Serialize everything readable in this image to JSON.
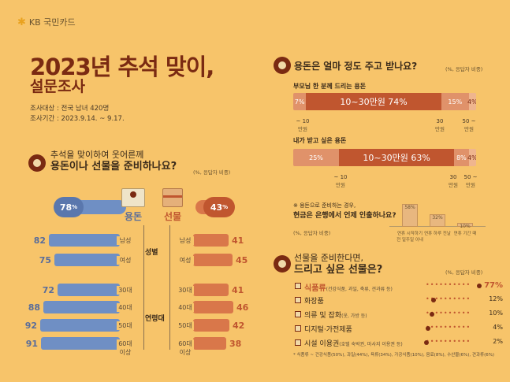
{
  "brand": {
    "logo": "KB 국민카드"
  },
  "header": {
    "title_line1": "2023년 추석 맞이,",
    "title_line2": "설문조사",
    "target": "조사대상 : 전국 남녀 420명",
    "period": "조사기간 : 2023.9.14. ~ 9.17."
  },
  "left": {
    "question_line1": "추석을 맞이하여 웃어른께",
    "question_line2": "용돈이나 선물을 준비하나요?",
    "unit": "(%, 응답자 비중)",
    "yongdon_label": "용돈",
    "yongdon_value": "78",
    "gift_label": "선물",
    "gift_value": "43",
    "gender_label": "성별",
    "age_label": "연령대",
    "rows": [
      {
        "cat": "남성",
        "left": "82",
        "right": "41",
        "lnum": 82,
        "rnum": 41
      },
      {
        "cat": "여성",
        "left": "75",
        "right": "45",
        "lnum": 75,
        "rnum": 45
      },
      {
        "cat": "30대",
        "left": "72",
        "right": "41",
        "lnum": 72,
        "rnum": 41
      },
      {
        "cat": "40대",
        "left": "88",
        "right": "46",
        "lnum": 88,
        "rnum": 46
      },
      {
        "cat": "50대",
        "left": "92",
        "right": "42",
        "lnum": 92,
        "rnum": 42
      },
      {
        "cat": "60대 이상",
        "left": "91",
        "right": "38",
        "lnum": 91,
        "rnum": 38
      }
    ]
  },
  "right_top": {
    "question": "용돈은 얼마 정도 주고 받나요?",
    "unit": "(%, 응답자 비중)",
    "bar1_title": "부모님 한 분께 드리는 용돈",
    "bar1": [
      {
        "label": "7%",
        "pct": 7
      },
      {
        "label": "10~30만원 74%",
        "pct": 74
      },
      {
        "label": "15%",
        "pct": 15
      },
      {
        "label": "4%",
        "pct": 4
      }
    ],
    "bar2_title": "내가 받고 싶은 용돈",
    "bar2": [
      {
        "label": "25%",
        "pct": 25
      },
      {
        "label": "10~30만원 63%",
        "pct": 63
      },
      {
        "label": "8%",
        "pct": 8
      },
      {
        "label": "4%",
        "pct": 4
      }
    ],
    "ticks": [
      "~ 10",
      "30",
      "50 ~"
    ],
    "tick_unit": "만원",
    "note_line1": "※ 용돈으로 준비하는 경우,",
    "note_line2": "현금은 은행에서 언제 인출하나요?",
    "note_unit": "(%, 응답자 비중)",
    "withdraw": [
      {
        "val": "58%",
        "label": "연휴 시작하기 전 일주일 이내",
        "h": 58
      },
      {
        "val": "32%",
        "label": "연휴 하루 전날",
        "h": 32
      },
      {
        "val": "10%",
        "label": "연휴 기간 때",
        "h": 10
      }
    ]
  },
  "right_bottom": {
    "question_line1": "선물을 준비한다면,",
    "question_line2": "드리고 싶은 선물은?",
    "unit": "(%, 응답자 비중)",
    "items": [
      {
        "name": "식품류",
        "detail": "(건강식품, 과일, 축류, 견과류 등)",
        "value": "77%",
        "n": 77
      },
      {
        "name": "화장품",
        "detail": "",
        "value": "12%",
        "n": 12
      },
      {
        "name": "의류 및 잡화",
        "detail": "(옷, 가방 등)",
        "value": "10%",
        "n": 10
      },
      {
        "name": "디지털·가전제품",
        "detail": "",
        "value": "4%",
        "n": 4
      },
      {
        "name": "시설 이용권",
        "detail": "(호텔 숙박권, 마사지 이용권 등)",
        "value": "2%",
        "n": 2
      }
    ],
    "footnote": "* 식품류 ~ 건강식품(50%), 과일(44%), 육류(34%), 가공식품(10%), 음료(8%), 수산물(6%), 견과류(6%)"
  },
  "colors": {
    "bg": "#f7c46a",
    "accent": "#7a2a12",
    "blue": "#6f8fc4",
    "orange": "#d9774a"
  }
}
